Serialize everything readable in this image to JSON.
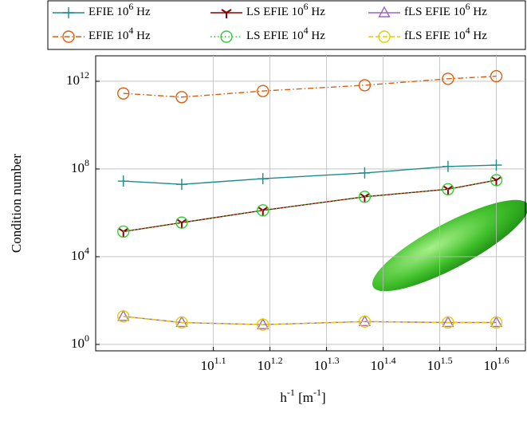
{
  "chart_data": {
    "type": "line",
    "ylabel": "Condition number",
    "xlabel": "h^{-1} [m^{-1}]",
    "xlog": true,
    "ylog": true,
    "grid": true,
    "xlim": [
      7.8,
      44.8
    ],
    "ylim": [
      0.51,
      14500000000000.0
    ],
    "xticks": [
      {
        "value": 12.589,
        "label": "10^{1.1}"
      },
      {
        "value": 15.849,
        "label": "10^{1.2}"
      },
      {
        "value": 19.953,
        "label": "10^{1.3}"
      },
      {
        "value": 25.119,
        "label": "10^{1.4}"
      },
      {
        "value": 31.623,
        "label": "10^{1.5}"
      },
      {
        "value": 39.811,
        "label": "10^{1.6}"
      }
    ],
    "yticks": [
      {
        "value": 1,
        "label": "10^{0}"
      },
      {
        "value": 10000,
        "label": "10^{4}"
      },
      {
        "value": 100000000,
        "label": "10^{8}"
      },
      {
        "value": 1000000000000,
        "label": "10^{12}"
      }
    ],
    "x": [
      8.73,
      11.07,
      15.4,
      23.3,
      32.7,
      39.8
    ],
    "series": [
      {
        "name": "EFIE 10^{6} Hz",
        "color": "#1a8c8c",
        "marker": "plus",
        "dash": "solid",
        "values": [
          28000000.0,
          20000000.0,
          36000000.0,
          66000000.0,
          130000000.0,
          150000000.0
        ]
      },
      {
        "name": "LS EFIE 10^{6} Hz",
        "color": "#8b0000",
        "marker": "tri",
        "dash": "solid",
        "values": [
          140000.0,
          360000.0,
          1300000.0,
          5400000.0,
          12000000.0,
          31000000.0
        ]
      },
      {
        "name": "fLS EFIE 10^{6} Hz",
        "color": "#9966cc",
        "marker": "triangle",
        "dash": "solid",
        "values": [
          19,
          10,
          8,
          11,
          10,
          10
        ]
      },
      {
        "name": "EFIE 10^{4} Hz",
        "color": "#d95f0e",
        "marker": "circle",
        "dash": "dashdot",
        "values": [
          280000000000.0,
          190000000000.0,
          360000000000.0,
          660000000000.0,
          1300000000000.0,
          1700000000000.0
        ]
      },
      {
        "name": "LS EFIE 10^{4} Hz",
        "color": "#33cc33",
        "marker": "circle",
        "dash": "dotted",
        "values": [
          140000.0,
          360000.0,
          1300000.0,
          5400000.0,
          12000000.0,
          31000000.0
        ]
      },
      {
        "name": "fLS EFIE 10^{4} Hz",
        "color": "#e6cc00",
        "marker": "circle",
        "dash": "dashed",
        "values": [
          19,
          10,
          8,
          11,
          10,
          10
        ]
      }
    ]
  }
}
